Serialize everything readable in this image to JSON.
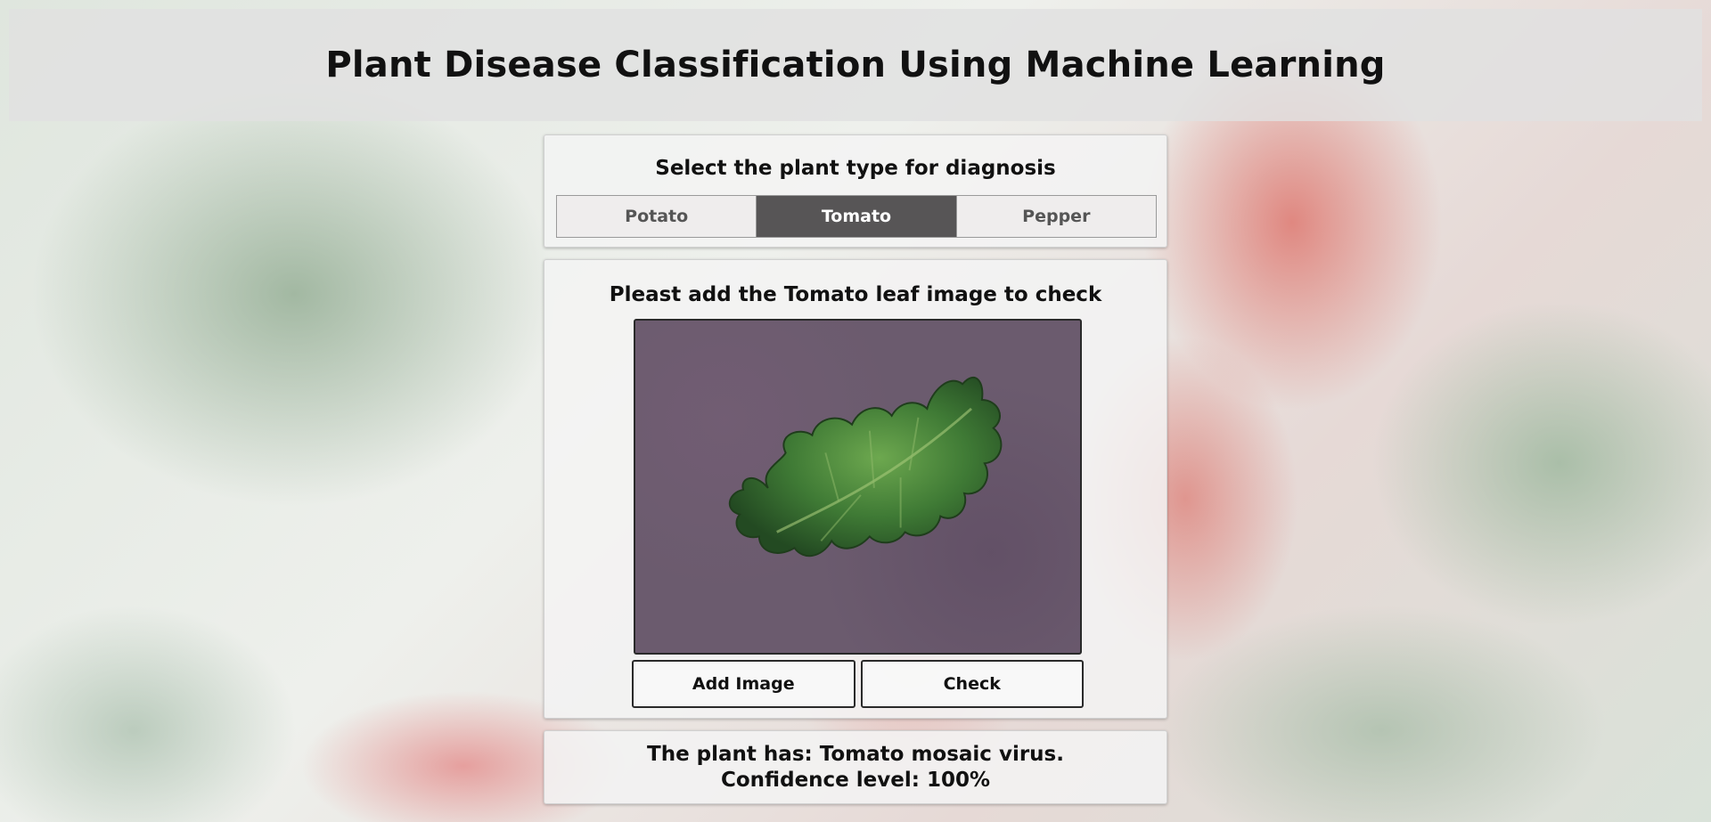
{
  "header": {
    "title": "Plant Disease Classification Using Machine Learning"
  },
  "plant_select": {
    "prompt": "Select the plant type for diagnosis",
    "options": [
      "Potato",
      "Tomato",
      "Pepper"
    ],
    "selected": "Tomato"
  },
  "upload": {
    "prompt": "Pleast add the Tomato leaf image to check",
    "add_image_label": "Add Image",
    "check_label": "Check"
  },
  "result": {
    "disease_line": "The plant has: Tomato mosaic virus.",
    "confidence_line": "Confidence level: 100%"
  },
  "colors": {
    "active_segment": "#575556",
    "header_bg": "#e1e1e1",
    "leaf": "#3f7a35",
    "preview_bg": "#6b5b6e"
  }
}
